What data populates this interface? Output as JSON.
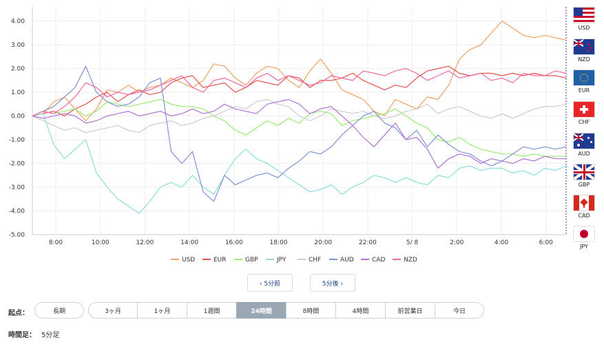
{
  "chart_data": {
    "type": "line",
    "ylim": [
      -5,
      4.6
    ],
    "yticks": [
      "4.00",
      "3.00",
      "2.00",
      "1.00",
      "0.00",
      "-1.00",
      "-2.00",
      "-3.00",
      "-4.00",
      "-5.00"
    ],
    "xticks": [
      "8:00",
      "10:00",
      "12:00",
      "14:00",
      "16:00",
      "18:00",
      "20:00",
      "22:00",
      "5/ 8",
      "2:00",
      "4:00",
      "6:00"
    ],
    "grid": true,
    "legend_position": "bottom",
    "series": [
      {
        "name": "USD",
        "color": "#f0a060",
        "values": [
          0,
          0.1,
          0.6,
          0.8,
          0.3,
          -0.2,
          0.3,
          1.1,
          1.0,
          1.3,
          1.0,
          1.2,
          1.3,
          1.6,
          1.4,
          1.2,
          1.5,
          2.2,
          2.1,
          1.6,
          1.3,
          1.8,
          2.1,
          2.0,
          1.5,
          1.2,
          1.9,
          2.4,
          1.8,
          1.1,
          0.9,
          0.7,
          0.2,
          0.0,
          0.7,
          0.5,
          0.3,
          0.8,
          0.7,
          1.3,
          2.4,
          2.8,
          3.0,
          3.5,
          4.0,
          3.7,
          3.4,
          3.3,
          3.4,
          3.3,
          3.2
        ]
      },
      {
        "name": "EUR",
        "color": "#e8504a",
        "values": [
          0,
          0.1,
          0.2,
          0.0,
          0.3,
          0.5,
          0.8,
          1.0,
          0.6,
          0.9,
          1.1,
          0.9,
          1.0,
          1.4,
          1.6,
          1.7,
          1.2,
          1.3,
          1.4,
          1.0,
          1.2,
          1.5,
          1.4,
          1.3,
          1.7,
          1.6,
          1.2,
          1.5,
          1.5,
          1.6,
          1.8,
          1.5,
          1.3,
          1.1,
          1.3,
          1.2,
          1.6,
          1.9,
          2.0,
          2.1,
          1.8,
          1.7,
          1.8,
          1.8,
          1.7,
          1.8,
          1.7,
          1.8,
          1.7,
          1.7,
          1.6
        ]
      },
      {
        "name": "GBP",
        "color": "#98ec70",
        "values": [
          0,
          0.2,
          0.1,
          0.2,
          0.3,
          0.0,
          0.2,
          0.6,
          0.5,
          0.4,
          0.5,
          0.6,
          0.7,
          0.5,
          0.4,
          0.4,
          0.3,
          0.0,
          -0.2,
          -0.6,
          -0.8,
          -0.5,
          -0.2,
          -0.4,
          -0.1,
          -0.3,
          0.1,
          0.2,
          0.1,
          -0.4,
          -0.2,
          -0.1,
          0.0,
          0.1,
          0.3,
          0.0,
          -0.3,
          -0.5,
          -1.0,
          -1.1,
          -0.9,
          -1.2,
          -1.4,
          -1.5,
          -1.6,
          -1.6,
          -1.7,
          -1.6,
          -1.7,
          -1.7,
          -1.7
        ]
      },
      {
        "name": "JPY",
        "color": "#88e0d8",
        "values": [
          0,
          0.1,
          -1.2,
          -1.8,
          -1.4,
          -1.0,
          -2.4,
          -3.0,
          -3.5,
          -3.8,
          -4.1,
          -3.6,
          -3.0,
          -2.8,
          -3.0,
          -2.5,
          -3.0,
          -3.3,
          -2.5,
          -1.8,
          -1.4,
          -1.8,
          -2.0,
          -2.3,
          -2.6,
          -2.9,
          -3.2,
          -3.1,
          -2.9,
          -3.3,
          -3.0,
          -2.8,
          -2.5,
          -2.6,
          -2.8,
          -2.6,
          -2.8,
          -2.9,
          -2.5,
          -2.6,
          -2.2,
          -2.1,
          -2.3,
          -2.2,
          -2.2,
          -2.4,
          -2.3,
          -2.5,
          -2.2,
          -2.3,
          -2.1
        ]
      },
      {
        "name": "CHF",
        "color": "#cccccc",
        "values": [
          0,
          -0.2,
          -0.4,
          -0.6,
          -0.5,
          -0.7,
          -0.6,
          -0.5,
          -0.4,
          -0.6,
          -0.7,
          -0.4,
          -0.3,
          -0.2,
          -0.4,
          -0.3,
          -0.1,
          0.0,
          0.2,
          0.4,
          0.3,
          0.6,
          0.7,
          0.5,
          0.4,
          0.0,
          -0.2,
          0.0,
          0.3,
          0.2,
          0.1,
          0.2,
          0.0,
          -0.1,
          0.0,
          0.2,
          0.3,
          0.5,
          0.1,
          0.3,
          0.4,
          0.2,
          0.0,
          -0.1,
          0.1,
          -0.1,
          0.1,
          0.3,
          0.4,
          0.4,
          0.5
        ]
      },
      {
        "name": "AUD",
        "color": "#8090d8",
        "values": [
          0,
          0.2,
          0.4,
          0.8,
          1.2,
          2.1,
          1.0,
          0.6,
          0.4,
          0.5,
          0.8,
          1.4,
          1.6,
          -1.5,
          -2.0,
          -1.5,
          -3.2,
          -3.6,
          -2.5,
          -2.9,
          -2.7,
          -2.5,
          -2.4,
          -2.6,
          -2.2,
          -1.9,
          -1.5,
          -1.6,
          -1.3,
          -0.8,
          -0.4,
          0.0,
          0.2,
          -0.3,
          -0.5,
          -1.0,
          -0.6,
          -1.3,
          -0.8,
          -1.2,
          -1.5,
          -1.6,
          -1.9,
          -2.1,
          -1.9,
          -1.6,
          -1.3,
          -1.4,
          -1.3,
          -1.4,
          -1.3
        ]
      },
      {
        "name": "CAD",
        "color": "#b070d8",
        "values": [
          0,
          -0.1,
          0.0,
          0.1,
          0.0,
          -0.3,
          -0.2,
          0.0,
          0.1,
          0.2,
          0.0,
          0.1,
          0.2,
          0.0,
          0.1,
          0.3,
          0.1,
          0.2,
          0.5,
          0.3,
          0.2,
          0.1,
          0.5,
          0.6,
          0.7,
          0.5,
          0.1,
          0.3,
          0.4,
          0.0,
          -0.4,
          -0.9,
          -1.3,
          -0.8,
          -0.3,
          -1.0,
          -0.9,
          -1.4,
          -2.2,
          -1.8,
          -1.6,
          -1.7,
          -2.0,
          -1.8,
          -1.9,
          -2.0,
          -1.8,
          -1.9,
          -1.7,
          -1.8,
          -1.8
        ]
      },
      {
        "name": "NZD",
        "color": "#f066a0",
        "values": [
          0,
          0.2,
          0.1,
          0.4,
          0.8,
          1.4,
          1.2,
          0.8,
          1.0,
          0.9,
          1.0,
          1.1,
          1.3,
          1.5,
          1.7,
          1.2,
          1.0,
          1.5,
          1.6,
          1.4,
          1.2,
          1.6,
          1.8,
          1.5,
          1.7,
          1.5,
          1.3,
          1.4,
          1.7,
          1.6,
          1.5,
          1.9,
          1.8,
          1.7,
          1.9,
          2.0,
          1.8,
          1.5,
          1.7,
          1.9,
          1.6,
          1.7,
          1.8,
          1.5,
          1.6,
          1.4,
          1.8,
          1.7,
          1.7,
          1.9,
          1.8
        ]
      }
    ]
  },
  "flags": [
    {
      "code": "USD",
      "label": "USD"
    },
    {
      "code": "NZD",
      "label": "NZD"
    },
    {
      "code": "EUR",
      "label": "EUR"
    },
    {
      "code": "CHF",
      "label": "CHF"
    },
    {
      "code": "AUD",
      "label": "AUD"
    },
    {
      "code": "GBP",
      "label": "GBP"
    },
    {
      "code": "CAD",
      "label": "CAD"
    },
    {
      "code": "JPY",
      "label": "JPY"
    }
  ],
  "nav": {
    "prev_label": "‹ 5分前",
    "next_label": "5分後 ›"
  },
  "range": {
    "label": "起点：",
    "options": [
      "長期",
      "3ヶ月",
      "1ヶ月",
      "1週間",
      "24時間",
      "8時間",
      "4時間",
      "前営業日",
      "今日"
    ],
    "selected": "24時間"
  },
  "interval": {
    "label": "時間足：",
    "value": "5分足"
  }
}
